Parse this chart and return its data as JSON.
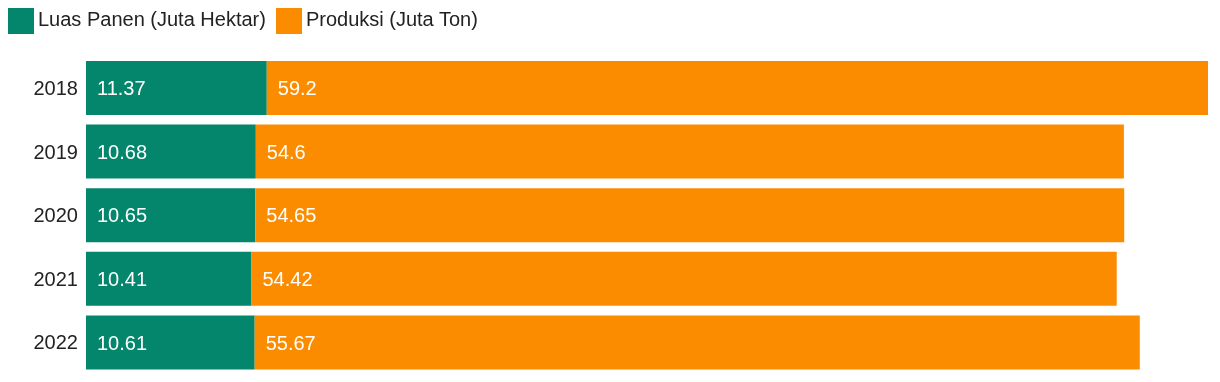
{
  "chart_data": {
    "type": "bar",
    "orientation": "horizontal",
    "stacked": true,
    "categories": [
      "2018",
      "2019",
      "2020",
      "2021",
      "2022"
    ],
    "series": [
      {
        "name": "Luas Panen (Juta Hektar)",
        "color": "#03866b",
        "values": [
          11.37,
          10.68,
          10.65,
          10.41,
          10.61
        ]
      },
      {
        "name": "Produksi (Juta Ton)",
        "color": "#fb8c00",
        "values": [
          59.2,
          54.6,
          54.65,
          54.42,
          55.67
        ]
      }
    ],
    "data_labels": true,
    "legend": "top left",
    "grid": false
  }
}
